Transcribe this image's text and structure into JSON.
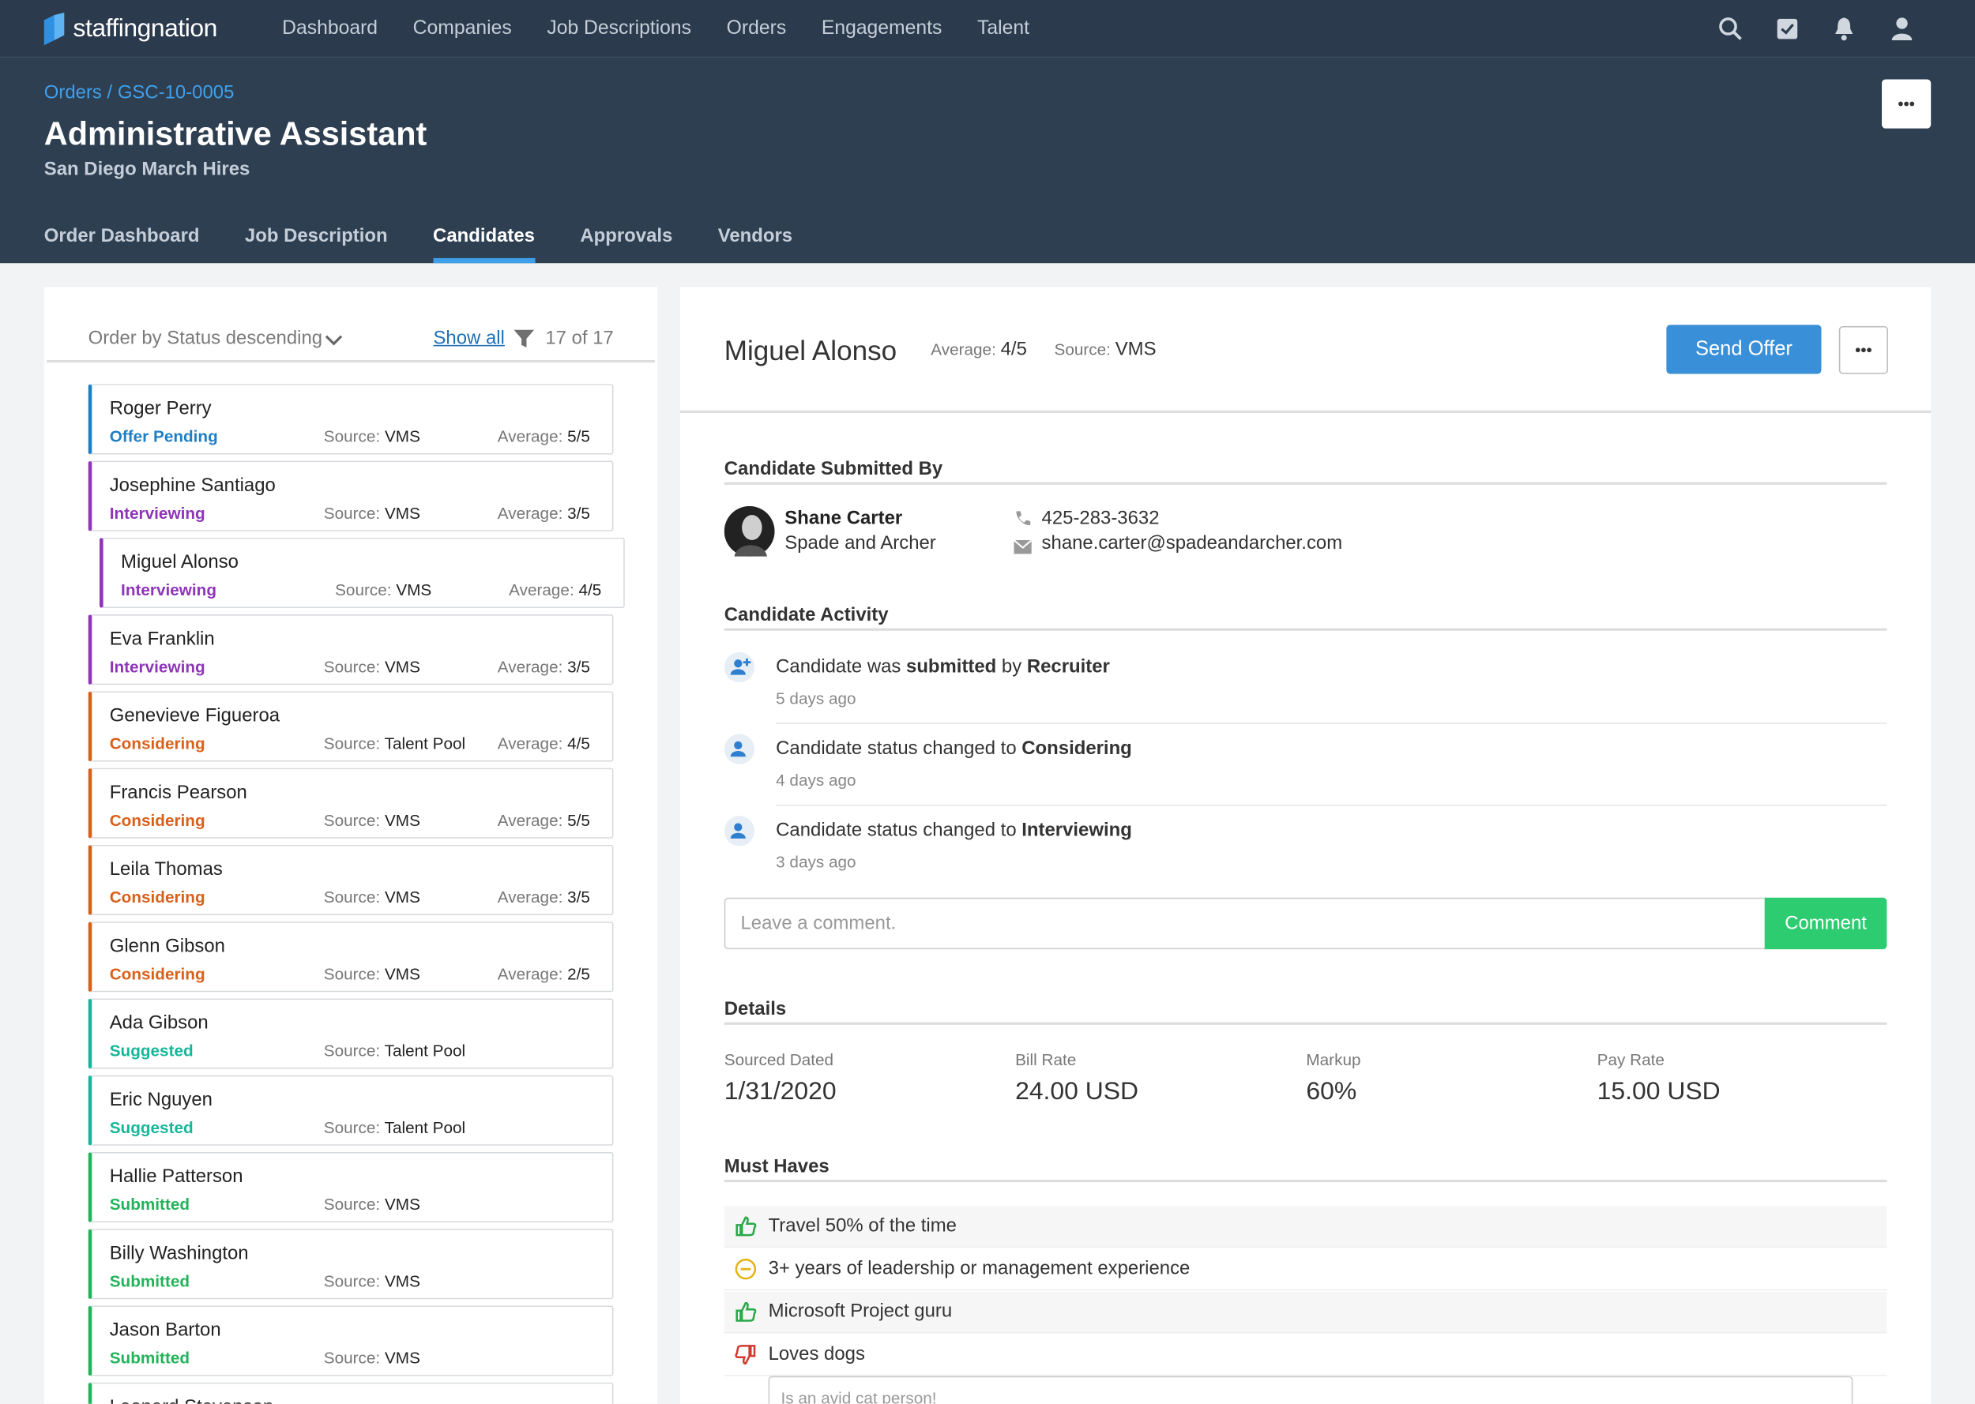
{
  "nav": {
    "brand": "staffingnation",
    "links": [
      "Dashboard",
      "Companies",
      "Job Descriptions",
      "Orders",
      "Engagements",
      "Talent"
    ]
  },
  "header": {
    "breadcrumb": "Orders / GSC-10-0005",
    "title": "Administrative Assistant",
    "subtitle": "San Diego March Hires",
    "tabs": [
      "Order Dashboard",
      "Job Description",
      "Candidates",
      "Approvals",
      "Vendors"
    ],
    "active_tab": 2
  },
  "list": {
    "sort": "Order by Status descending",
    "show_all": "Show all",
    "count": "17 of 17",
    "source_label": "Source:",
    "average_label": "Average:",
    "selected": 2,
    "candidates": [
      {
        "name": "Roger Perry",
        "status": "Offer Pending",
        "color": "#1f7fc4",
        "source": "VMS",
        "average": "5/5"
      },
      {
        "name": "Josephine Santiago",
        "status": "Interviewing",
        "color": "#8e35b8",
        "source": "VMS",
        "average": "3/5"
      },
      {
        "name": "Miguel Alonso",
        "status": "Interviewing",
        "color": "#8e35b8",
        "source": "VMS",
        "average": "4/5"
      },
      {
        "name": "Eva Franklin",
        "status": "Interviewing",
        "color": "#8e35b8",
        "source": "VMS",
        "average": "3/5"
      },
      {
        "name": "Genevieve Figueroa",
        "status": "Considering",
        "color": "#d9601a",
        "source": "Talent Pool",
        "average": "4/5"
      },
      {
        "name": "Francis Pearson",
        "status": "Considering",
        "color": "#d9601a",
        "source": "VMS",
        "average": "5/5"
      },
      {
        "name": "Leila Thomas",
        "status": "Considering",
        "color": "#d9601a",
        "source": "VMS",
        "average": "3/5"
      },
      {
        "name": "Glenn Gibson",
        "status": "Considering",
        "color": "#d9601a",
        "source": "VMS",
        "average": "2/5"
      },
      {
        "name": "Ada Gibson",
        "status": "Suggested",
        "color": "#17b69a",
        "source": "Talent Pool"
      },
      {
        "name": "Eric Nguyen",
        "status": "Suggested",
        "color": "#17b69a",
        "source": "Talent Pool"
      },
      {
        "name": "Hallie Patterson",
        "status": "Submitted",
        "color": "#22b35a",
        "source": "VMS"
      },
      {
        "name": "Billy Washington",
        "status": "Submitted",
        "color": "#22b35a",
        "source": "VMS"
      },
      {
        "name": "Jason Barton",
        "status": "Submitted",
        "color": "#22b35a",
        "source": "VMS"
      },
      {
        "name": "Leonard Stevenson",
        "color": "#22b35a"
      }
    ]
  },
  "detail": {
    "name": "Miguel Alonso",
    "average_label": "Average:",
    "average": "4/5",
    "source_label": "Source:",
    "source": "VMS",
    "send_offer": "Send Offer",
    "submitted": {
      "heading": "Candidate Submitted By",
      "person": "Shane Carter",
      "company": "Spade and Archer",
      "phone": "425-283-3632",
      "email": "shane.carter@spadeandarcher.com"
    },
    "activity": {
      "heading": "Candidate Activity",
      "items": [
        {
          "icon": "add",
          "segments": [
            {
              "text": "Candidate was "
            },
            {
              "text": "submitted",
              "bold": true
            },
            {
              "text": " by "
            },
            {
              "text": "Recruiter",
              "bold": true
            }
          ],
          "time": "5 days ago"
        },
        {
          "icon": "user",
          "segments": [
            {
              "text": "Candidate status changed to "
            },
            {
              "text": "Considering",
              "bold": true
            }
          ],
          "time": "4 days ago"
        },
        {
          "icon": "user",
          "segments": [
            {
              "text": "Candidate status changed to "
            },
            {
              "text": "Interviewing",
              "bold": true
            }
          ],
          "time": "3 days ago"
        }
      ],
      "placeholder": "Leave a comment.",
      "button": "Comment"
    },
    "details": {
      "heading": "Details",
      "fields": [
        {
          "label": "Sourced Dated",
          "value": "1/31/2020"
        },
        {
          "label": "Bill Rate",
          "value": "24.00 USD"
        },
        {
          "label": "Markup",
          "value": "60%"
        },
        {
          "label": "Pay Rate",
          "value": "15.00 USD"
        }
      ]
    },
    "must_haves": {
      "heading": "Must Haves",
      "items": [
        {
          "text": "Travel 50% of the time",
          "status": "yes"
        },
        {
          "text": "3+ years of leadership or management experience",
          "status": "maybe"
        },
        {
          "text": "Microsoft Project guru",
          "status": "yes"
        },
        {
          "text": "Loves dogs",
          "status": "no"
        }
      ],
      "note_placeholder": "Is an avid cat person!"
    }
  }
}
